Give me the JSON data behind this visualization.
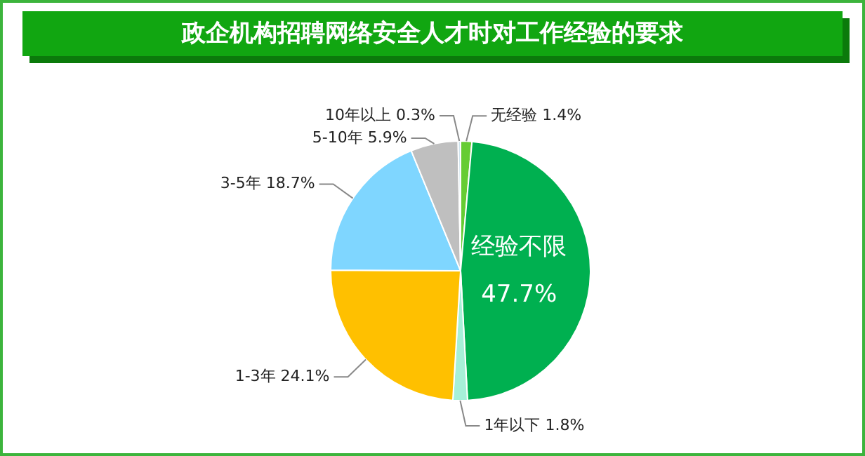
{
  "chart_data": {
    "type": "pie",
    "title": "政企机构招聘网络安全人才时对工作经验的要求",
    "categories": [
      "无经验",
      "经验不限",
      "1年以下",
      "1-3年",
      "3-5年",
      "5-10年",
      "10年以上"
    ],
    "values": [
      1.4,
      47.7,
      1.8,
      24.1,
      18.7,
      5.9,
      0.3
    ],
    "colors": [
      "#66cc33",
      "#00b050",
      "#a6f0d8",
      "#ffc000",
      "#7fd6ff",
      "#bfbfbf",
      "#cfe3ee"
    ],
    "value_labels": [
      "1.4%",
      "47.7%",
      "1.8%",
      "24.1%",
      "18.7%",
      "5.9%",
      "0.3%"
    ],
    "legend": false
  }
}
